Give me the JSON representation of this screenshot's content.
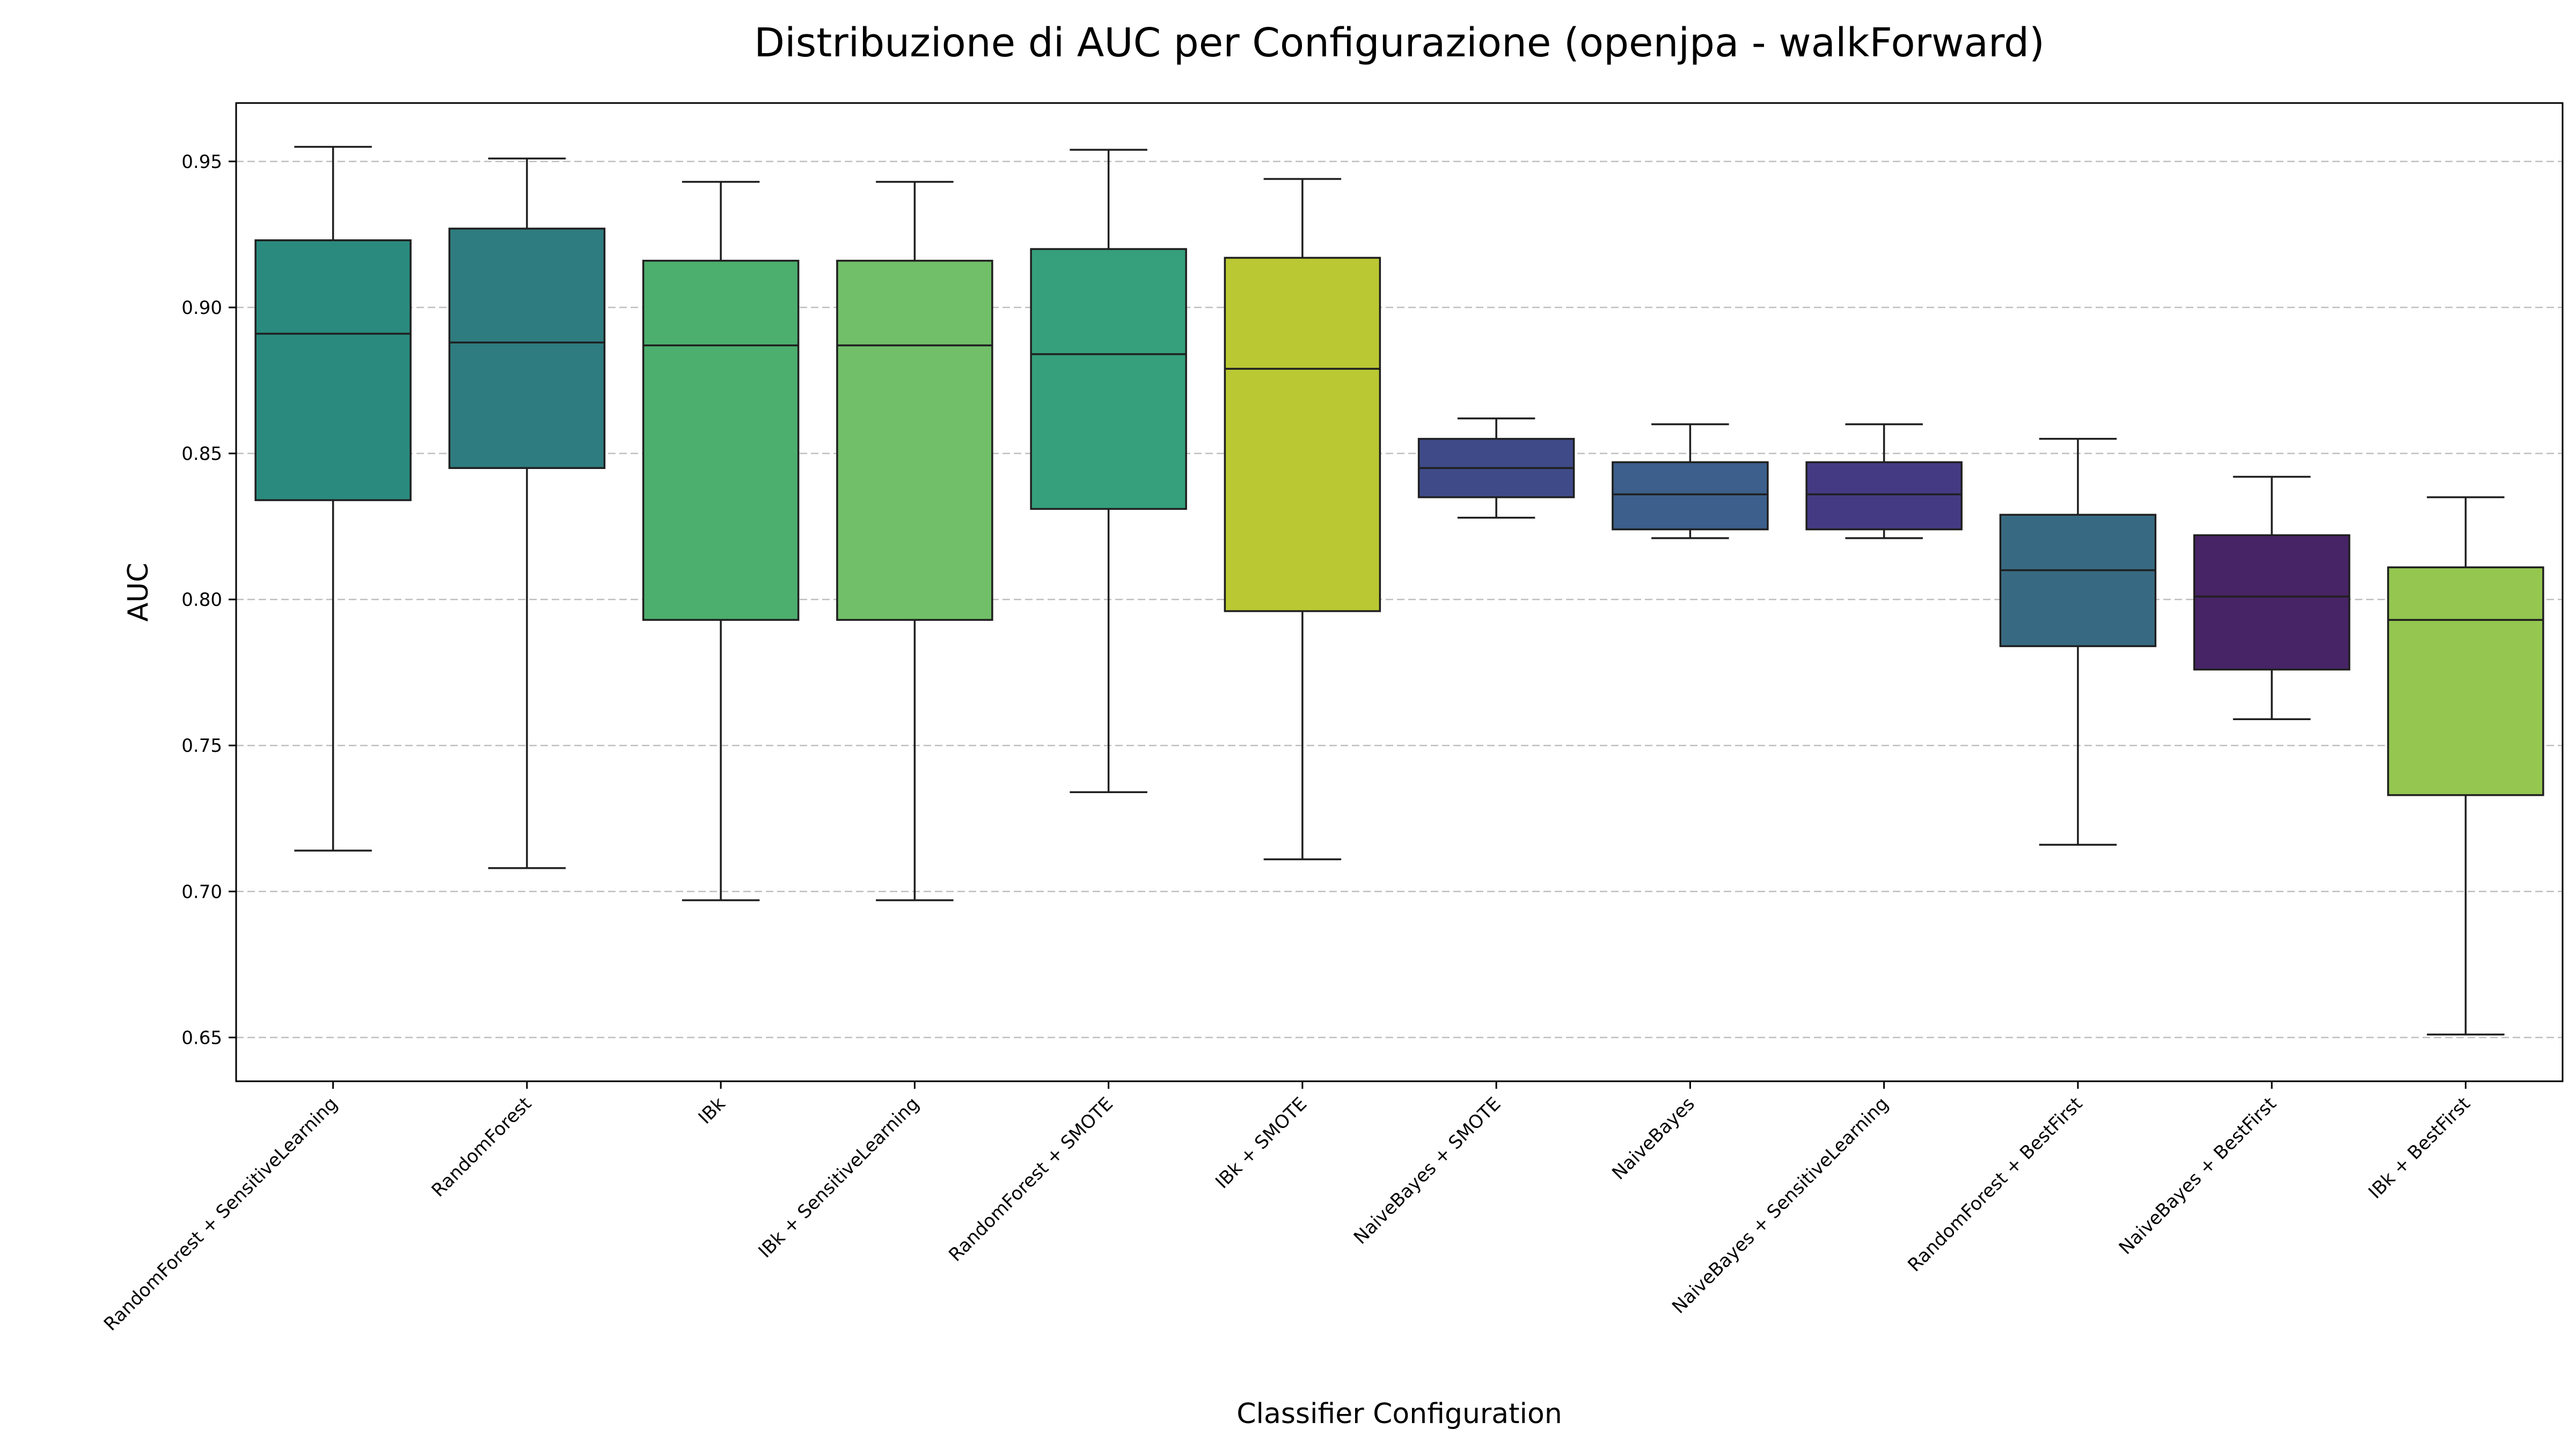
{
  "chart_data": {
    "type": "box",
    "title": "Distribuzione di AUC per Configurazione (openjpa - walkForward)",
    "xlabel": "Classifier Configuration",
    "ylabel": "AUC",
    "ylim": [
      0.635,
      0.97
    ],
    "yticks": [
      0.65,
      0.7,
      0.75,
      0.8,
      0.85,
      0.9,
      0.95
    ],
    "ytick_labels": [
      "0.65",
      "0.70",
      "0.75",
      "0.80",
      "0.85",
      "0.90",
      "0.95"
    ],
    "grid": "y-dashed",
    "categories": [
      "RandomForest + SensitiveLearning",
      "RandomForest",
      "IBk",
      "IBk + SensitiveLearning",
      "RandomForest + SMOTE",
      "IBk + SMOTE",
      "NaiveBayes + SMOTE",
      "NaiveBayes",
      "NaiveBayes + SensitiveLearning",
      "RandomForest + BestFirst",
      "NaiveBayes + BestFirst",
      "IBk + BestFirst"
    ],
    "boxes": [
      {
        "whisker_low": 0.714,
        "q1": 0.834,
        "median": 0.891,
        "q3": 0.923,
        "whisker_high": 0.955,
        "color": "#2a8a7e"
      },
      {
        "whisker_low": 0.708,
        "q1": 0.845,
        "median": 0.888,
        "q3": 0.927,
        "whisker_high": 0.951,
        "color": "#2e7c7f"
      },
      {
        "whisker_low": 0.697,
        "q1": 0.793,
        "median": 0.887,
        "q3": 0.916,
        "whisker_high": 0.943,
        "color": "#4caf6e"
      },
      {
        "whisker_low": 0.697,
        "q1": 0.793,
        "median": 0.887,
        "q3": 0.916,
        "whisker_high": 0.943,
        "color": "#72bf6a"
      },
      {
        "whisker_low": 0.734,
        "q1": 0.831,
        "median": 0.884,
        "q3": 0.92,
        "whisker_high": 0.954,
        "color": "#35a07b"
      },
      {
        "whisker_low": 0.711,
        "q1": 0.796,
        "median": 0.879,
        "q3": 0.917,
        "whisker_high": 0.944,
        "color": "#bac833"
      },
      {
        "whisker_low": 0.828,
        "q1": 0.835,
        "median": 0.845,
        "q3": 0.855,
        "whisker_high": 0.862,
        "color": "#3f4b88"
      },
      {
        "whisker_low": 0.821,
        "q1": 0.824,
        "median": 0.836,
        "q3": 0.847,
        "whisker_high": 0.86,
        "color": "#3c5f8b"
      },
      {
        "whisker_low": 0.821,
        "q1": 0.824,
        "median": 0.836,
        "q3": 0.847,
        "whisker_high": 0.86,
        "color": "#443a84"
      },
      {
        "whisker_low": 0.716,
        "q1": 0.784,
        "median": 0.81,
        "q3": 0.829,
        "whisker_high": 0.855,
        "color": "#376a82"
      },
      {
        "whisker_low": 0.759,
        "q1": 0.776,
        "median": 0.801,
        "q3": 0.822,
        "whisker_high": 0.842,
        "color": "#472465"
      },
      {
        "whisker_low": 0.651,
        "q1": 0.733,
        "median": 0.793,
        "q3": 0.811,
        "whisker_high": 0.835,
        "color": "#94c650"
      }
    ]
  }
}
